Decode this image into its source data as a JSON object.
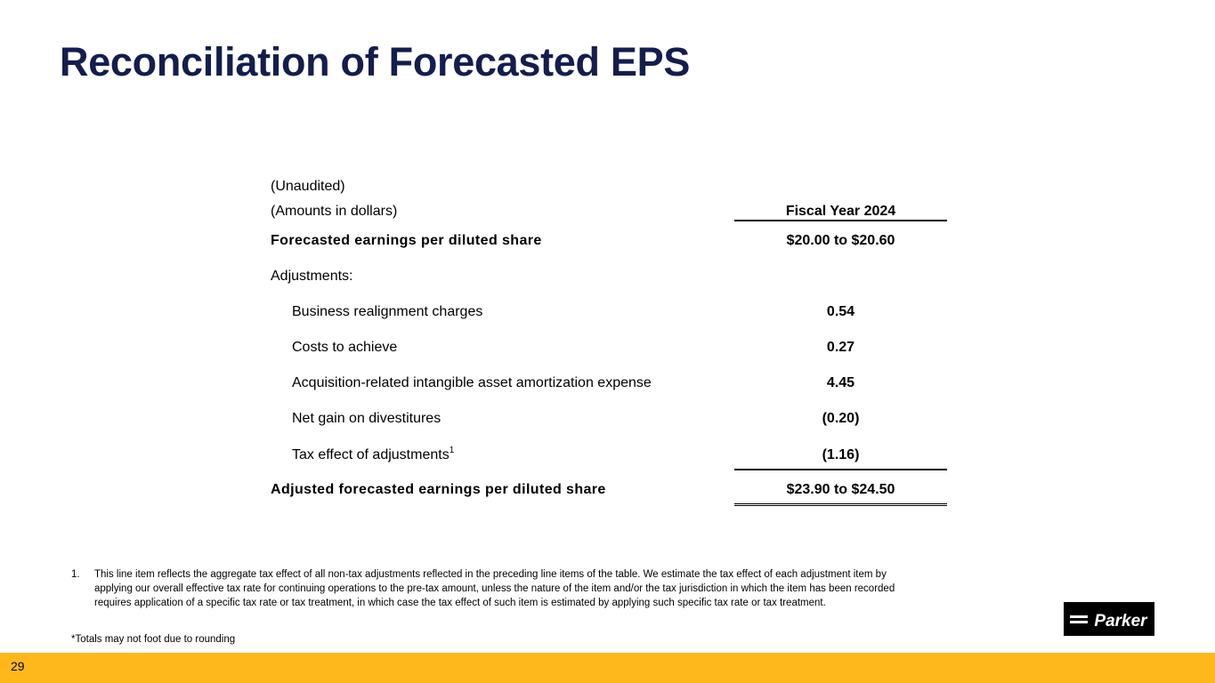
{
  "slide": {
    "title": "Reconciliation of Forecasted EPS",
    "page_number": "29"
  },
  "table": {
    "unaudited": "(Unaudited)",
    "amounts": "(Amounts in dollars)",
    "column_header": "Fiscal Year 2024",
    "forecasted": {
      "label": "Forecasted earnings per diluted share",
      "value": "$20.00 to $20.60"
    },
    "adjustments_label": "Adjustments:",
    "adjustments": [
      {
        "label": "Business realignment charges",
        "value": "0.54"
      },
      {
        "label": "Costs to achieve",
        "value": "0.27"
      },
      {
        "label": "Acquisition-related intangible asset amortization expense",
        "value": "4.45"
      },
      {
        "label": "Net gain on divestitures",
        "value": "(0.20)"
      },
      {
        "label": "Tax effect of adjustments",
        "footnote_marker": "1",
        "value": "(1.16)"
      }
    ],
    "adjusted": {
      "label": "Adjusted forecasted earnings per diluted share",
      "value": "$23.90 to $24.50"
    }
  },
  "footnotes": {
    "number": "1.",
    "text": "This line item reflects the aggregate tax effect of all non-tax adjustments reflected in the preceding line items of the table. We estimate the tax effect of each adjustment item by applying our overall effective tax rate for continuing operations to the pre-tax amount, unless the nature of the item and/or the tax jurisdiction in which the item has been recorded requires application of a specific tax rate or tax treatment, in which case the tax effect of such item is estimated by applying such specific tax rate or tax treatment.",
    "totals_note": "*Totals may not foot due to rounding"
  },
  "logo": {
    "text": "Parker",
    "colors": {
      "background": "#000000",
      "foreground": "#ffffff"
    }
  },
  "colors": {
    "title": "#131e4f",
    "footer_bar": "#ffb81c"
  }
}
